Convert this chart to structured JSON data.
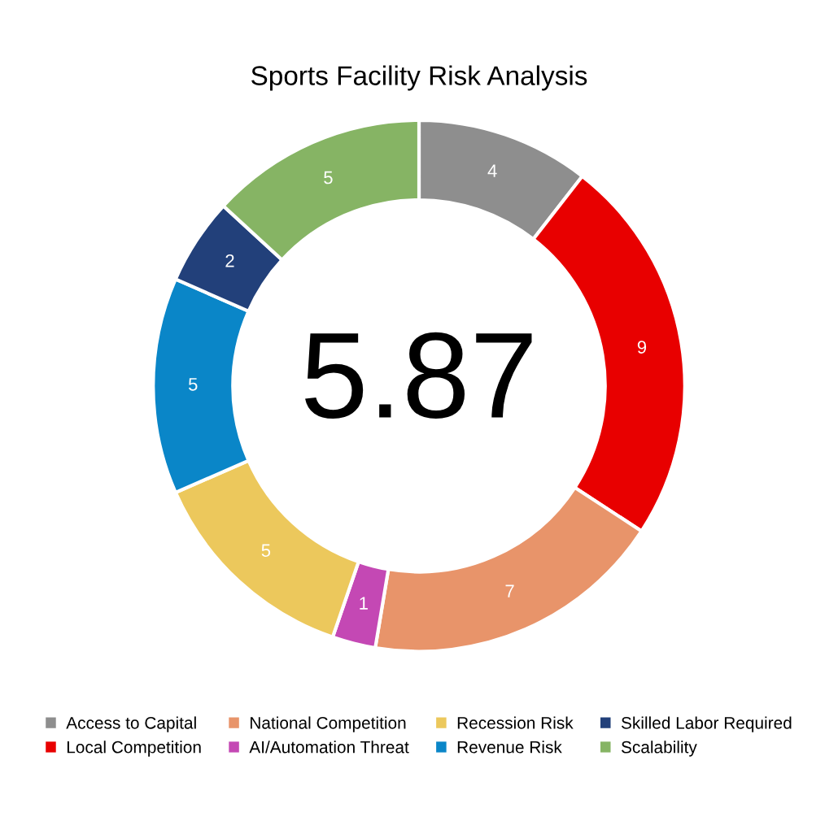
{
  "chart_data": {
    "type": "donut",
    "title": "Sports Facility Risk Analysis",
    "categories": [
      "Access to Capital",
      "Local Competition",
      "National Competition",
      "AI/Automation Threat",
      "Recession Risk",
      "Revenue Risk",
      "Skilled Labor Required",
      "Scalability"
    ],
    "values": [
      4,
      9,
      7,
      1,
      5,
      5,
      2,
      5
    ],
    "colors": [
      "#8e8e8e",
      "#e80000",
      "#e8946a",
      "#c448b4",
      "#ecc85c",
      "#0a86c8",
      "#22407a",
      "#86b464"
    ],
    "data_labels": true,
    "annotations": [
      "5.87"
    ],
    "legend": "bottom"
  }
}
